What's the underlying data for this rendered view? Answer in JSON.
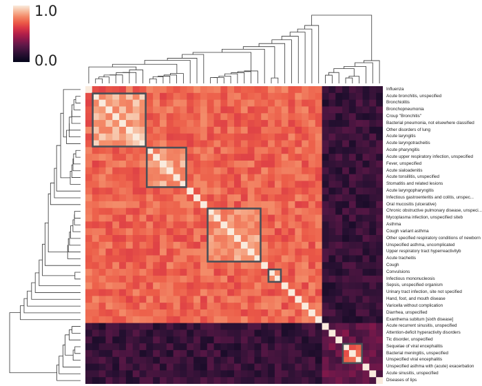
{
  "colorbar": {
    "max_label": "1.0",
    "min_label": "0.0",
    "low_color": "#03051a",
    "high_color": "#faebdd"
  },
  "chart_data": {
    "type": "heatmap",
    "title": "",
    "xlabel": "",
    "ylabel": "",
    "value_range": [
      0,
      1
    ],
    "colormap": "rocket",
    "row_labels": [
      "Influenza",
      "Acute bronchitis, unspecified",
      "Bronchiolitis",
      "Bronchopneumonia",
      "Croup \"Bronchitis\"",
      "Bacterial pneumonia, not elsewhere classified",
      "Other disorders of lung",
      "Acute laryngitis",
      "Acute laryngotracheitis",
      "Acute pharyngitis",
      "Acute upper respiratory infection, unspecified",
      "Fever, unspecified",
      "Acute sialoadenitis",
      "Acute tonsillitis, unspecified",
      "Stomatitis and related lesions",
      "Acute laryngopharyngitis",
      "Infectious gastroenteritis and colitis, unspec...",
      "Oral mucositis (ulcerative)",
      "Chronic obstructive pulmonary disease, unspeci...b",
      "Mycoplasma infection, unspecified siteb",
      "Asthma",
      "Cough variant asthma",
      "Other specified respiratory conditions of newborn",
      "Unspecified asthma, uncomplicated",
      "Upper respiratory tract hyperreactivityb",
      "Acute tracheitis",
      "Cough",
      "Convulsions",
      "Infectious mononucleosis",
      "Sepsis, unspecified organism",
      "Urinary tract infection, site not specified",
      "Hand, foot, and mouth disease",
      "Varicella without complication",
      "Diarrhea, unspecified",
      "Exanthema subitum [sixth disease]",
      "Acute recurrent sinusitis, unspecified",
      "Attention-deficit hyperactivity disorders",
      "Tic disorder, unspecified",
      "Sequelae of viral encephalitis",
      "Bacterial meningitis, unspecified",
      "Unspecified viral encephalitis",
      "Unspecified asthma with (acute) exacerbation",
      "Acute sinusitis, unspecified",
      "Diseases of lips"
    ],
    "col_labels": [],
    "symmetric": true,
    "diagonal_value": 1.0,
    "cluster_boxes": [
      {
        "rows": [
          1,
          8
        ]
      },
      {
        "rows": [
          9,
          14
        ]
      },
      {
        "rows": [
          18,
          25
        ]
      },
      {
        "rows": [
          27,
          28
        ]
      },
      {
        "rows": [
          38,
          40
        ]
      }
    ],
    "block_values": [
      {
        "rows": [
          0,
          34
        ],
        "cols": [
          0,
          34
        ],
        "value": 0.72
      },
      {
        "rows": [
          1,
          8
        ],
        "cols": [
          1,
          8
        ],
        "value": 0.87
      },
      {
        "rows": [
          9,
          14
        ],
        "cols": [
          9,
          14
        ],
        "value": 0.85
      },
      {
        "rows": [
          18,
          25
        ],
        "cols": [
          18,
          25
        ],
        "value": 0.82
      },
      {
        "rows": [
          27,
          28
        ],
        "cols": [
          27,
          28
        ],
        "value": 0.8
      },
      {
        "rows": [
          0,
          34
        ],
        "cols": [
          35,
          43
        ],
        "value": 0.18
      },
      {
        "rows": [
          35,
          43
        ],
        "cols": [
          0,
          34
        ],
        "value": 0.18
      },
      {
        "rows": [
          35,
          43
        ],
        "cols": [
          35,
          43
        ],
        "value": 0.3
      },
      {
        "rows": [
          38,
          40
        ],
        "cols": [
          38,
          40
        ],
        "value": 0.65
      }
    ],
    "dendrograms": {
      "top": true,
      "left": true
    }
  }
}
